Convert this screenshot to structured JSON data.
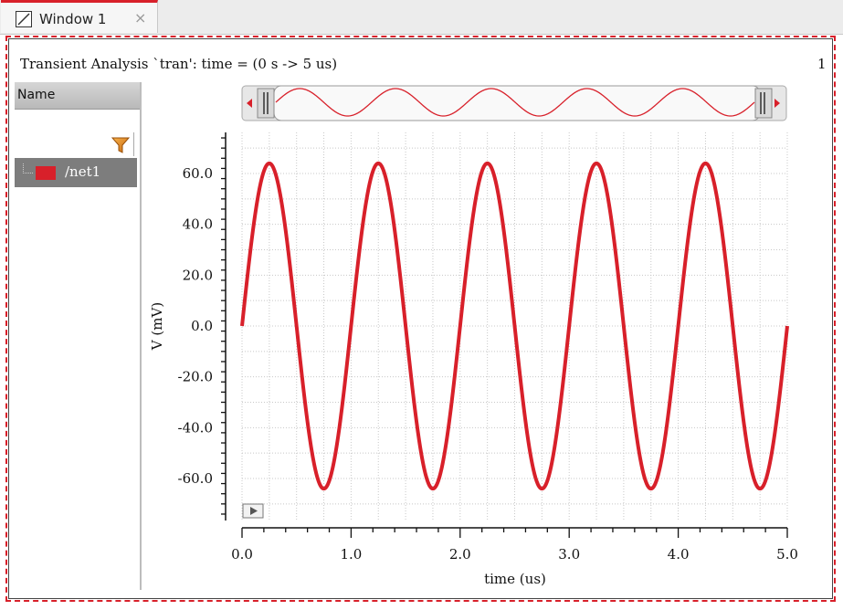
{
  "window": {
    "tab_title": "Window 1",
    "close_glyph": "×",
    "tab_icon": "waveform-window-icon"
  },
  "analysis": {
    "title": "Transient Analysis `tran': time = (0 s -> 5 us)",
    "plot_index": "1"
  },
  "name_panel": {
    "header": "Name",
    "filter_icon": "filter-funnel-icon",
    "signals": [
      {
        "label": "/net1",
        "color": "#d8202a"
      }
    ]
  },
  "overview": {
    "left_arrow_icon": "scroll-left-arrow-icon",
    "right_arrow_icon": "scroll-right-arrow-icon"
  },
  "chart_data": {
    "type": "line",
    "title": "",
    "xlabel": "time (us)",
    "ylabel": "V (mV)",
    "xlim": [
      0.0,
      5.0
    ],
    "ylim": [
      -75,
      75
    ],
    "x_ticks": [
      "0.0",
      "1.0",
      "2.0",
      "3.0",
      "4.0",
      "5.0"
    ],
    "y_ticks": [
      "60.0",
      "40.0",
      "20.0",
      "0.0",
      "-20.0",
      "-40.0",
      "-60.0"
    ],
    "y_tick_values": [
      60,
      40,
      20,
      0,
      -20,
      -40,
      -60
    ],
    "x_tick_values": [
      0,
      1,
      2,
      3,
      4,
      5
    ],
    "grid": true,
    "series": [
      {
        "name": "/net1",
        "color": "#d8202a",
        "function": "sine",
        "amplitude": 64,
        "frequency_mhz": 1.0,
        "offset": 0
      }
    ]
  }
}
